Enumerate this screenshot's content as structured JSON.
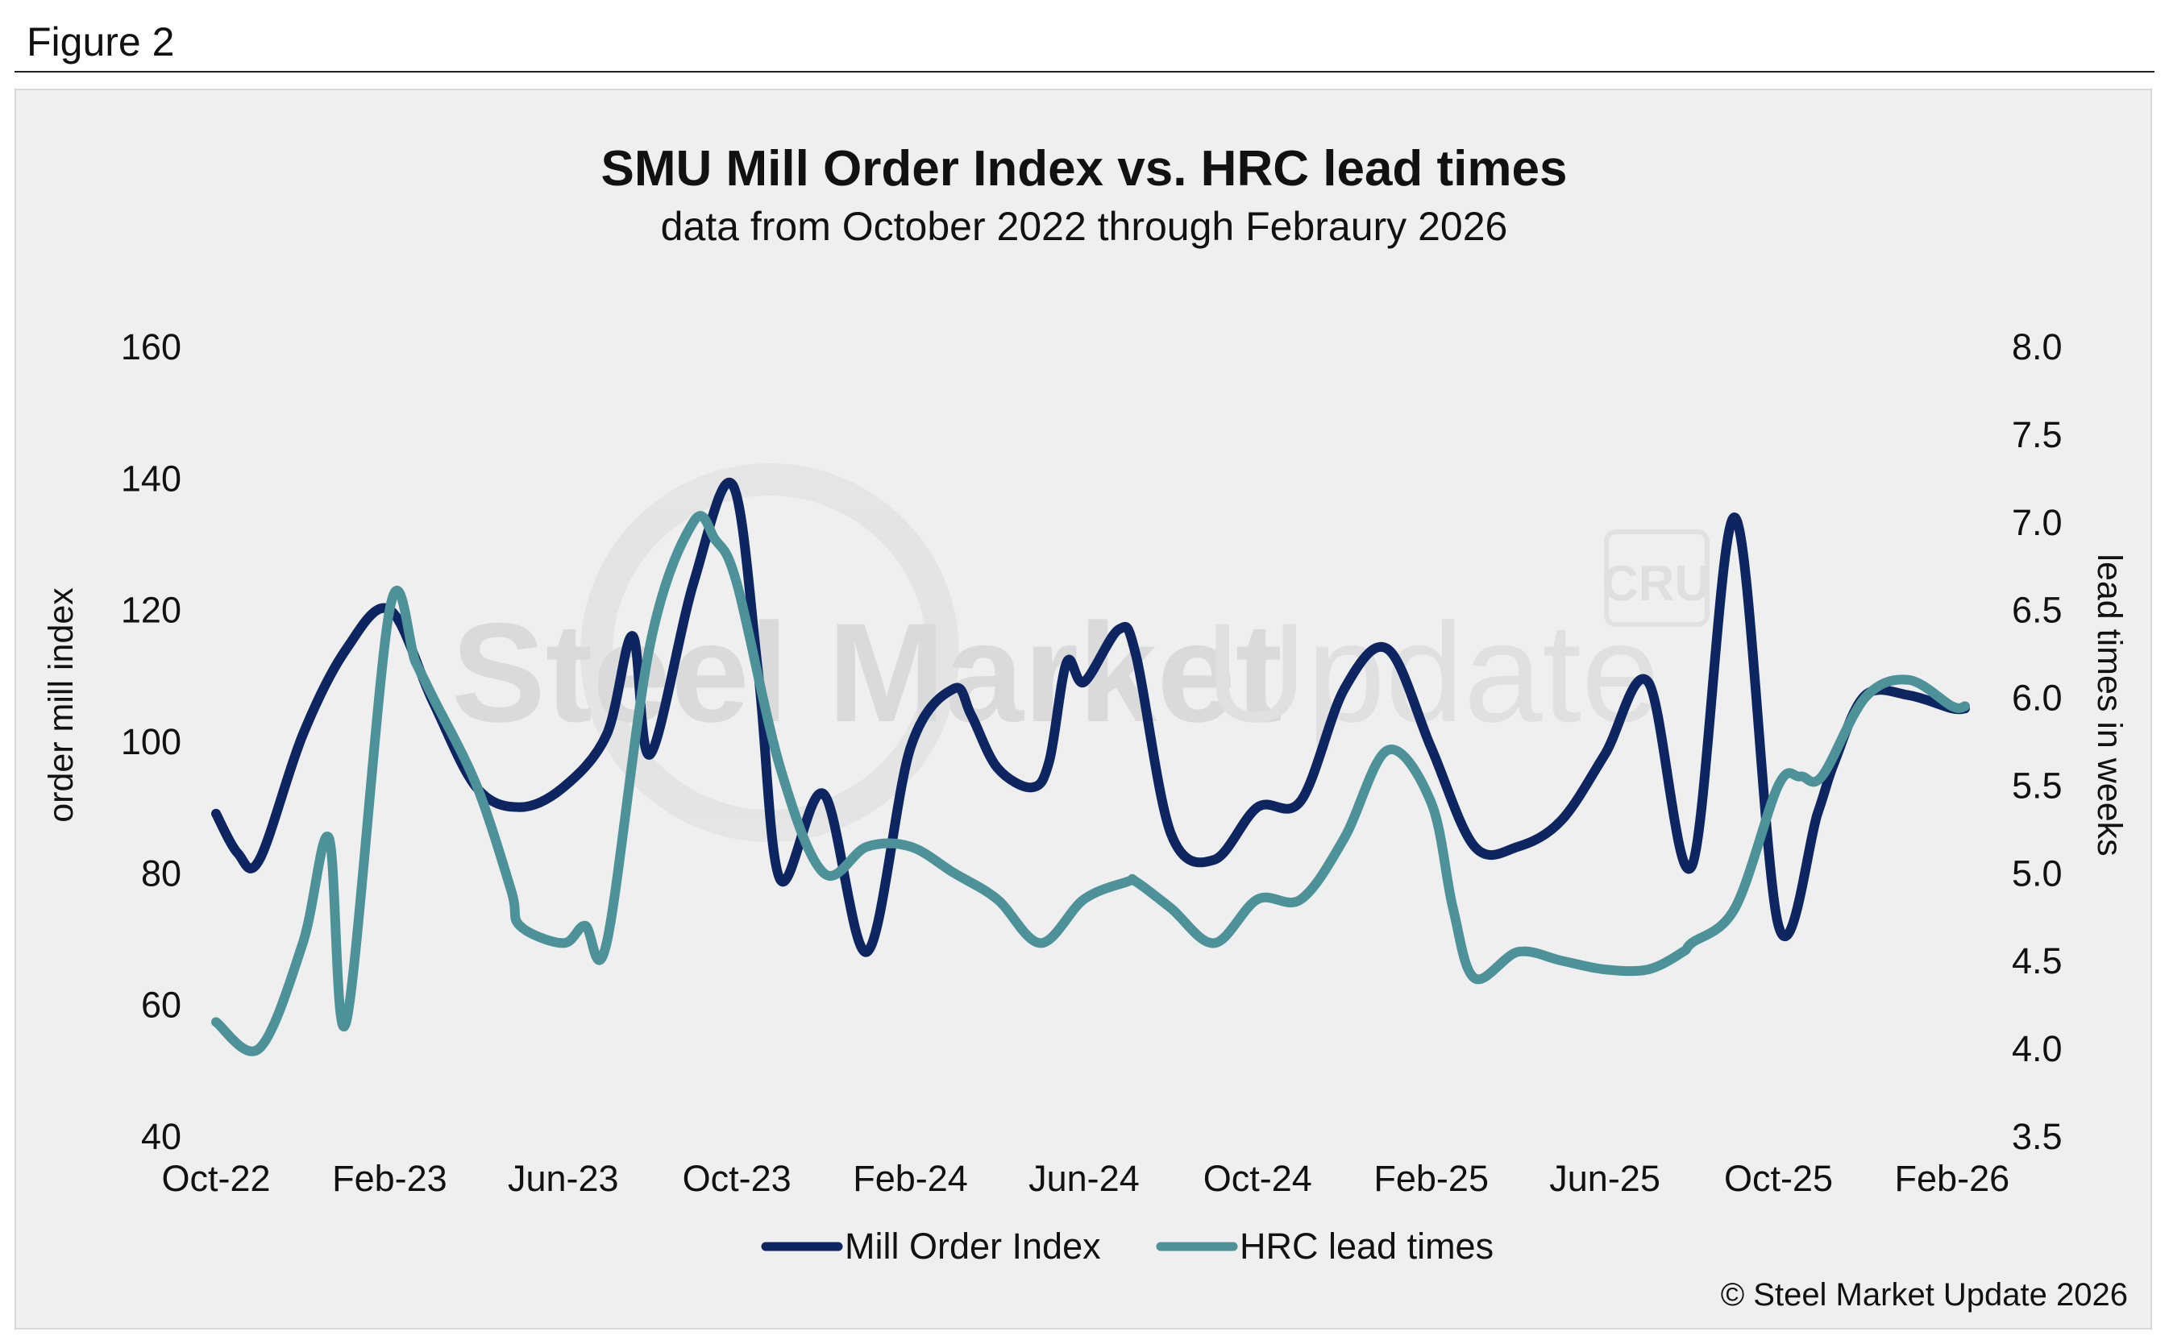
{
  "figure_label": "Figure 2",
  "watermark": {
    "text_bold": "Steel Market",
    "text_light": "Update",
    "logo": "CRU"
  },
  "copyright": "© Steel Market Update 2026",
  "colors": {
    "mill_order_index": "#0d2560",
    "hrc_lead_times": "#4e9299",
    "panel": "#efefef"
  },
  "chart_data": {
    "type": "line",
    "title": "SMU Mill Order Index vs. HRC lead times",
    "subtitle": "data from October 2022 through Febraury 2026",
    "xlabel": "",
    "ylabel_left": "order mill index",
    "ylabel_right": "lead times in weeks",
    "x_tick_labels": [
      "Oct-22",
      "Feb-23",
      "Jun-23",
      "Oct-23",
      "Feb-24",
      "Jun-24",
      "Oct-24",
      "Feb-25",
      "Jun-25",
      "Oct-25",
      "Feb-26"
    ],
    "y_left_ticks": [
      "40",
      "60",
      "80",
      "100",
      "120",
      "140",
      "160"
    ],
    "y_right_ticks": [
      "3.5",
      "4.0",
      "4.5",
      "5.0",
      "5.5",
      "6.0",
      "6.5",
      "7.0",
      "7.5",
      "8.0"
    ],
    "y_left_range": [
      40,
      160
    ],
    "y_right_range": [
      3.5,
      8.0
    ],
    "x_start_index": 0,
    "x_end_index": 40.3,
    "legend": [
      "Mill Order Index",
      "HRC lead times"
    ],
    "legend_position": "bottom-center",
    "series": [
      {
        "name": "Mill Order Index",
        "axis": "left",
        "x": [
          0,
          0.5,
          1,
          2,
          3,
          4,
          5,
          6,
          7,
          8,
          9,
          9.6,
          10,
          11,
          11.9,
          12.5,
          13,
          14,
          15,
          16,
          17,
          17.4,
          18,
          18.8,
          19.2,
          19.6,
          20,
          20.8,
          21.2,
          22,
          23,
          24,
          25,
          26,
          27,
          28,
          29,
          30,
          31,
          32,
          33,
          34,
          35,
          36,
          36.9,
          37.3,
          38,
          39,
          40,
          40.3
        ],
        "values": [
          89,
          83,
          82,
          101,
          114,
          120,
          106,
          93,
          90,
          93,
          101,
          116,
          98,
          124,
          139,
          110,
          79,
          92,
          68,
          99,
          108,
          104,
          96,
          93,
          97,
          112,
          109,
          117,
          113,
          86,
          82,
          90,
          91,
          108,
          114,
          99,
          84,
          84,
          88,
          98,
          109,
          81,
          134,
          72,
          89,
          97,
          107,
          107,
          105,
          105
        ]
      },
      {
        "name": "HRC lead times",
        "axis": "right",
        "x": [
          0,
          1,
          2,
          2.6,
          3,
          4,
          4.6,
          5,
          6,
          6.8,
          7,
          8,
          8.5,
          9,
          10,
          11,
          11.5,
          12,
          13,
          14,
          15,
          16,
          17,
          18,
          19,
          20,
          21,
          21.2,
          22,
          23,
          24,
          25,
          26,
          27,
          28,
          28.5,
          29,
          30,
          31,
          32,
          33,
          33.8,
          34,
          35,
          36,
          36.5,
          37,
          38,
          39,
          40,
          40.3
        ],
        "values": [
          4.15,
          4.0,
          4.6,
          5.2,
          4.15,
          6.5,
          6.2,
          6.0,
          5.5,
          4.9,
          4.7,
          4.6,
          4.7,
          4.6,
          6.3,
          7.0,
          6.9,
          6.65,
          5.6,
          5.0,
          5.15,
          5.15,
          5.0,
          4.85,
          4.6,
          4.85,
          4.95,
          4.95,
          4.8,
          4.6,
          4.85,
          4.85,
          5.2,
          5.7,
          5.4,
          4.8,
          4.4,
          4.55,
          4.5,
          4.45,
          4.45,
          4.55,
          4.6,
          4.8,
          5.5,
          5.55,
          5.55,
          6.0,
          6.1,
          5.95,
          5.95
        ]
      }
    ]
  }
}
